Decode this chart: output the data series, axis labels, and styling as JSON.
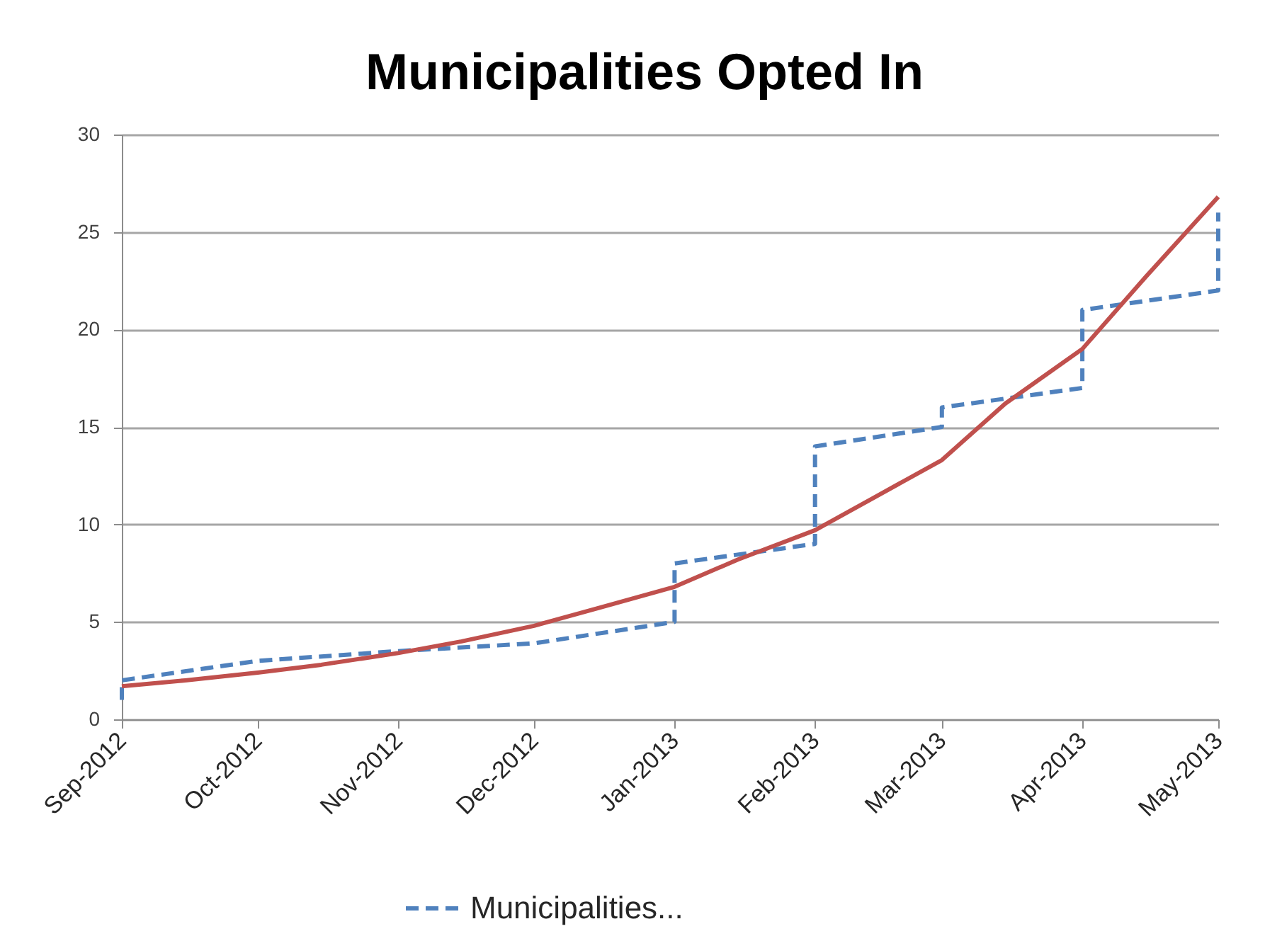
{
  "chart_data": {
    "type": "line",
    "title": "Municipalities Opted In",
    "series": [
      {
        "name": "Municipalities...",
        "color": "#4f81bd",
        "line_style": "dashed",
        "x": [
          "2012-09",
          "2012-09",
          "2012-10",
          "2012-11",
          "2012-12",
          "2013-01",
          "2013-01",
          "2013-02",
          "2013-02",
          "2013-03",
          "2013-03",
          "2013-04",
          "2013-04",
          "2013-05",
          "2013-05"
        ],
        "values": [
          1,
          2,
          3,
          3.5,
          3.9,
          5,
          8,
          9,
          14,
          15,
          16,
          17,
          21,
          22,
          26
        ]
      },
      {
        "type": "line",
        "color": "#c0504d",
        "line_style": "solid",
        "x": [
          "2012-09",
          "2012-09-15",
          "2012-10",
          "2012-10-15",
          "2012-11",
          "2012-11-15",
          "2012-12",
          "2012-12-15",
          "2013-01",
          "2013-01-15",
          "2013-02",
          "2013-02-15",
          "2013-03",
          "2013-03-15",
          "2013-04",
          "2013-04-15",
          "2013-05"
        ],
        "values": [
          1.7,
          2.0,
          2.4,
          2.8,
          3.4,
          4.0,
          4.8,
          5.7,
          6.8,
          8.2,
          9.7,
          11.5,
          13.3,
          16.2,
          19.0,
          22.7,
          26.8
        ]
      }
    ],
    "xlim": [
      "2012-09",
      "2013-05"
    ],
    "xticks": [
      {
        "value": "2012-09",
        "label": "Sep-2012"
      },
      {
        "value": "2012-10",
        "label": "Oct-2012"
      },
      {
        "value": "2012-11",
        "label": "Nov-2012"
      },
      {
        "value": "2012-12",
        "label": "Dec-2012"
      },
      {
        "value": "2013-01",
        "label": "Jan-2013"
      },
      {
        "value": "2013-02",
        "label": "Feb-2013"
      },
      {
        "value": "2013-03",
        "label": "Mar-2013"
      },
      {
        "value": "2013-04",
        "label": "Apr-2013"
      },
      {
        "value": "2013-05",
        "label": "May-2013"
      }
    ],
    "ylim": [
      0,
      30
    ],
    "yticks": [
      0,
      5,
      10,
      15,
      20,
      25,
      30
    ],
    "grid": "y",
    "legend": "bottom"
  }
}
